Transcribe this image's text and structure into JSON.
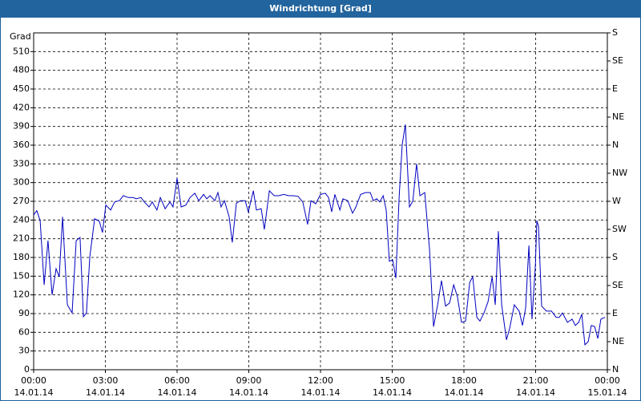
{
  "chart_data": {
    "type": "line",
    "title": "Windrichtung [Grad]",
    "y_label": "Grad",
    "xlim": [
      0,
      24
    ],
    "xticks": [
      {
        "value": 0,
        "label": "00:00"
      },
      {
        "value": 3,
        "label": "03:00"
      },
      {
        "value": 6,
        "label": "06:00"
      },
      {
        "value": 9,
        "label": "09:00"
      },
      {
        "value": 12,
        "label": "12:00"
      },
      {
        "value": 15,
        "label": "15:00"
      },
      {
        "value": 18,
        "label": "18:00"
      },
      {
        "value": 21,
        "label": "21:00"
      },
      {
        "value": 24,
        "label": "00:00"
      }
    ],
    "xtick_dates": [
      "14.01.14",
      "14.01.14",
      "14.01.14",
      "14.01.14",
      "14.01.14",
      "14.01.14",
      "14.01.14",
      "14.01.14",
      "15.01.14"
    ],
    "ylim": [
      0,
      540
    ],
    "yticks": [
      0,
      30,
      60,
      90,
      120,
      150,
      180,
      210,
      240,
      270,
      300,
      330,
      360,
      390,
      420,
      450,
      480,
      510
    ],
    "y2lim": [
      0,
      540
    ],
    "y2ticks": [
      {
        "value": 0,
        "label": "N"
      },
      {
        "value": 45,
        "label": "NE"
      },
      {
        "value": 90,
        "label": "E"
      },
      {
        "value": 135,
        "label": "SE"
      },
      {
        "value": 180,
        "label": "S"
      },
      {
        "value": 225,
        "label": "SW"
      },
      {
        "value": 270,
        "label": "W"
      },
      {
        "value": 315,
        "label": "NW"
      },
      {
        "value": 360,
        "label": "N"
      },
      {
        "value": 405,
        "label": "NE"
      },
      {
        "value": 450,
        "label": "E"
      },
      {
        "value": 495,
        "label": "SE"
      },
      {
        "value": 540,
        "label": "S"
      }
    ],
    "grid": true,
    "series": [
      {
        "color": "#0000c0",
        "x": [
          0,
          0.13,
          0.27,
          0.44,
          0.6,
          0.77,
          0.94,
          1.07,
          1.21,
          1.41,
          1.61,
          1.78,
          1.94,
          2.08,
          2.21,
          2.35,
          2.55,
          2.75,
          2.88,
          3.02,
          3.22,
          3.39,
          3.59,
          3.75,
          3.96,
          4.16,
          4.29,
          4.49,
          4.63,
          4.83,
          4.96,
          5.16,
          5.3,
          5.5,
          5.7,
          5.83,
          6.0,
          6.17,
          6.37,
          6.54,
          6.74,
          6.91,
          7.11,
          7.24,
          7.38,
          7.58,
          7.71,
          7.84,
          7.98,
          8.18,
          8.31,
          8.48,
          8.65,
          8.85,
          8.98,
          9.19,
          9.32,
          9.52,
          9.65,
          9.86,
          10.06,
          10.26,
          10.46,
          10.66,
          10.86,
          11.06,
          11.26,
          11.46,
          11.6,
          11.8,
          12.0,
          12.2,
          12.34,
          12.47,
          12.6,
          12.81,
          12.94,
          13.14,
          13.34,
          13.48,
          13.68,
          13.88,
          14.08,
          14.21,
          14.35,
          14.48,
          14.62,
          14.75,
          14.88,
          15.02,
          15.15,
          15.29,
          15.42,
          15.55,
          15.72,
          15.86,
          16.02,
          16.16,
          16.36,
          16.56,
          16.73,
          16.9,
          17.06,
          17.23,
          17.4,
          17.57,
          17.73,
          17.9,
          18.07,
          18.24,
          18.37,
          18.54,
          18.67,
          18.84,
          19.01,
          19.18,
          19.31,
          19.44,
          19.58,
          19.78,
          19.91,
          20.11,
          20.31,
          20.45,
          20.58,
          20.72,
          20.85,
          20.99,
          21.05,
          21.12,
          21.25,
          21.45,
          21.66,
          21.86,
          21.99,
          22.12,
          22.33,
          22.53,
          22.66,
          22.8,
          22.93,
          23.06,
          23.2,
          23.33,
          23.47,
          23.6,
          23.73,
          23.9
        ],
        "values": [
          248,
          255,
          239,
          136,
          207,
          120,
          162,
          149,
          245,
          104,
          91,
          207,
          212,
          85,
          91,
          181,
          242,
          238,
          220,
          264,
          256,
          269,
          271,
          279,
          276,
          276,
          274,
          276,
          269,
          261,
          269,
          256,
          276,
          258,
          269,
          261,
          307,
          261,
          264,
          276,
          283,
          271,
          281,
          274,
          279,
          271,
          284,
          261,
          271,
          245,
          204,
          267,
          271,
          271,
          253,
          287,
          256,
          258,
          225,
          287,
          279,
          279,
          281,
          279,
          279,
          278,
          269,
          233,
          271,
          266,
          281,
          283,
          276,
          253,
          281,
          256,
          274,
          271,
          251,
          261,
          281,
          284,
          284,
          271,
          274,
          269,
          279,
          256,
          174,
          176,
          147,
          278,
          361,
          393,
          261,
          270,
          330,
          279,
          284,
          194,
          69,
          104,
          143,
          102,
          107,
          136,
          117,
          76,
          78,
          140,
          149,
          84,
          78,
          91,
          109,
          149,
          104,
          222,
          104,
          48,
          66,
          104,
          94,
          71,
          99,
          199,
          81,
          168,
          239,
          230,
          102,
          94,
          94,
          84,
          84,
          91,
          76,
          81,
          71,
          76,
          89,
          40,
          45,
          71,
          69,
          50,
          81,
          84
        ]
      }
    ]
  }
}
